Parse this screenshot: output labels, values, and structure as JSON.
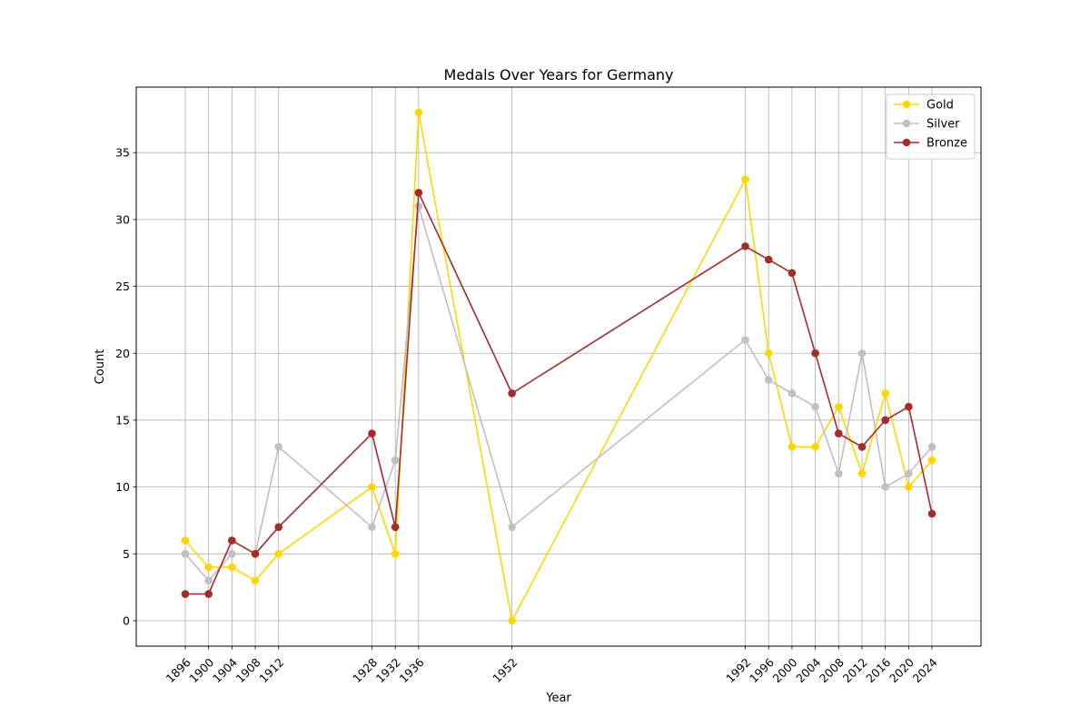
{
  "chart_data": {
    "type": "line",
    "title": "Medals Over Years for Germany",
    "xlabel": "Year",
    "ylabel": "Count",
    "x": [
      1896,
      1900,
      1904,
      1908,
      1912,
      1928,
      1932,
      1936,
      1952,
      1992,
      1996,
      2000,
      2004,
      2008,
      2012,
      2016,
      2020,
      2024
    ],
    "x_tick_labels": [
      "1896",
      "1900",
      "1904",
      "1908",
      "1912",
      "1928",
      "1932",
      "1936",
      "1952",
      "1992",
      "1996",
      "2000",
      "2004",
      "2008",
      "2012",
      "2016",
      "2020",
      "2024"
    ],
    "y_ticks": [
      0,
      5,
      10,
      15,
      20,
      25,
      30,
      35
    ],
    "ylim": [
      -1.9,
      39.9
    ],
    "xlim": [
      1887.6,
      2032.4
    ],
    "grid": true,
    "legend_position": "top-right",
    "series": [
      {
        "name": "Gold",
        "color": "#FFD700",
        "values": [
          6,
          4,
          4,
          3,
          5,
          10,
          5,
          38,
          0,
          33,
          20,
          13,
          13,
          16,
          11,
          17,
          10,
          12
        ]
      },
      {
        "name": "Silver",
        "color": "#C0C0C0",
        "values": [
          5,
          3,
          5,
          5,
          13,
          7,
          12,
          31,
          7,
          21,
          18,
          17,
          16,
          11,
          20,
          10,
          11,
          13
        ]
      },
      {
        "name": "Bronze",
        "color": "#A52A2A",
        "values": [
          2,
          2,
          6,
          5,
          7,
          14,
          7,
          32,
          17,
          28,
          27,
          26,
          20,
          14,
          13,
          15,
          16,
          8
        ]
      }
    ]
  }
}
